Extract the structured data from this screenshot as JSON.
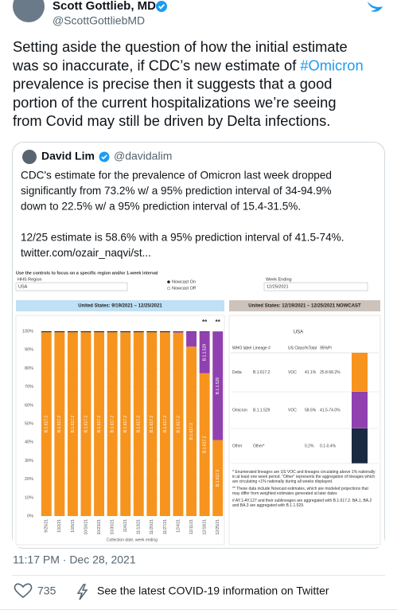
{
  "tweet": {
    "author": "Scott Gottlieb, MD",
    "handle": "@ScottGottliebMD",
    "text_lines": [
      [
        "Setting aside the question of how the initial estimate"
      ],
      [
        "was so inaccurate, if CDC’s new estimate of ",
        "#Omicron"
      ],
      [
        "prevalence is precise then it suggests that a good"
      ],
      [
        "portion of the current hospitalizations we’re seeing"
      ],
      [
        "from Covid may still be driven by Delta infections."
      ]
    ],
    "timestamp": "11:17 PM · Dec 28, 2021",
    "likes": 735,
    "covid_link": "See the latest COVID-19 information on Twitter"
  },
  "quoted_tweet": {
    "author": "David Lim",
    "handle": "@davidalim",
    "paragraphs": [
      [
        "CDC's estimate for the prevalence of Omicron last week dropped",
        "significantly from 73.2% w/ a 95% prediction interval of 34-94.9%",
        "down to 22.5% w/ a 95% prediction interval of 15.4-31.5%."
      ],
      [
        "12/25 estimate is 58.6% with a 95% prediction interval of 41.5-74%.",
        "twitter.com/ozair_naqvi/st..."
      ]
    ]
  },
  "dashboard": {
    "instructions": "Use the controls to focus on a specific region and/or 1-week interval",
    "region_label": "HHS Region",
    "region": "USA",
    "nowcast_options": [
      "Nowcast On",
      "Nowcast Off"
    ],
    "week_label": "Week Ending",
    "week": "12/25/2021",
    "left_header": "United States: 9/19/2021 – 12/25/2021",
    "right_header": "United States: 12/19/2021 – 12/25/2021 NOWCAST",
    "table": {
      "title": "USA",
      "columns": [
        "WHO label",
        "Lineage #",
        "US Class",
        "%Total",
        "95%PI"
      ],
      "rows": [
        [
          "Delta",
          "B.1.617.2",
          "VOC",
          "41.1%",
          "25.8-58.2%"
        ],
        [
          "Omicron",
          "B.1.1.529",
          "VOC",
          "58.6%",
          "41.5-74.0%"
        ],
        [
          "Other",
          "Other*",
          null,
          "0.2%",
          "0.1-0.4%"
        ]
      ],
      "row_colors": [
        "#f7941d",
        "#9140b0",
        "#1b2a41"
      ]
    },
    "notes": [
      "*   Enumerated lineages are US VOC and lineages circulating above 1% nationally in at least one week period. \"Other\" represents the aggregation of lineages which are circulating <1% nationally during all weeks displayed.",
      "**  These data include Nowcast estimates, which are modeled projections that may differ from weighted estimates generated at later dates",
      "#   AY.1-AY.127 and their sublineages are aggregated with B.1.617.2. BA.1, BA.2 and BA.3 are aggregated with B.1.1.529."
    ]
  },
  "chart_data": {
    "type": "bar",
    "stacked": true,
    "categories": [
      "9/25/21",
      "10/2/21",
      "10/9/21",
      "10/16/21",
      "10/23/21",
      "10/30/21",
      "11/6/21",
      "11/13/21",
      "11/20/21",
      "11/27/21",
      "12/4/21",
      "12/11/21",
      "12/18/21",
      "12/25/21"
    ],
    "series": [
      {
        "name": "B.1.617.2",
        "color": "#f7941d",
        "values": [
          99.5,
          99.5,
          99.5,
          99.5,
          99.5,
          99.5,
          99.5,
          99.5,
          99.5,
          99.5,
          99.3,
          91.7,
          77.3,
          41.1
        ]
      },
      {
        "name": "B.1.1.529",
        "color": "#9140b0",
        "values": [
          0,
          0,
          0,
          0,
          0,
          0,
          0,
          0,
          0,
          0,
          0.4,
          8,
          22.5,
          58.6
        ]
      },
      {
        "color": "#1b2a41",
        "values": [
          0.5,
          0.5,
          0.5,
          0.5,
          0.5,
          0.5,
          0.5,
          0.5,
          0.5,
          0.5,
          0.3,
          0.3,
          0.2,
          0.2
        ]
      }
    ],
    "ylim": [
      0,
      100
    ],
    "yticks": [
      {
        "value": 0,
        "label": "0%"
      },
      {
        "value": 10,
        "label": "10%"
      },
      {
        "value": 20,
        "label": "20%"
      },
      {
        "value": 30,
        "label": "30%"
      },
      {
        "value": 40,
        "label": "40%"
      },
      {
        "value": 50,
        "label": "50%"
      },
      {
        "value": 60,
        "label": "60%"
      },
      {
        "value": 70,
        "label": "70%"
      },
      {
        "value": 80,
        "label": "80%"
      },
      {
        "value": 90,
        "label": "90%"
      },
      {
        "value": 100,
        "label": "100%"
      }
    ],
    "grid": true,
    "xlabel": "Collection date, week ending",
    "annotations": [
      {
        "x": "12/18/21",
        "text": "**"
      },
      {
        "x": "12/25/21",
        "text": "**"
      }
    ]
  }
}
